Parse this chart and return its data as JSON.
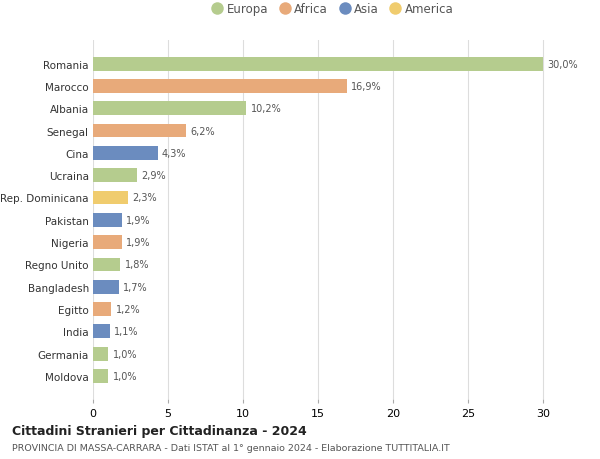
{
  "countries": [
    "Romania",
    "Marocco",
    "Albania",
    "Senegal",
    "Cina",
    "Ucraina",
    "Rep. Dominicana",
    "Pakistan",
    "Nigeria",
    "Regno Unito",
    "Bangladesh",
    "Egitto",
    "India",
    "Germania",
    "Moldova"
  ],
  "values": [
    30.0,
    16.9,
    10.2,
    6.2,
    4.3,
    2.9,
    2.3,
    1.9,
    1.9,
    1.8,
    1.7,
    1.2,
    1.1,
    1.0,
    1.0
  ],
  "labels": [
    "30,0%",
    "16,9%",
    "10,2%",
    "6,2%",
    "4,3%",
    "2,9%",
    "2,3%",
    "1,9%",
    "1,9%",
    "1,8%",
    "1,7%",
    "1,2%",
    "1,1%",
    "1,0%",
    "1,0%"
  ],
  "continents": [
    "Europa",
    "Africa",
    "Europa",
    "Africa",
    "Asia",
    "Europa",
    "America",
    "Asia",
    "Africa",
    "Europa",
    "Asia",
    "Africa",
    "Asia",
    "Europa",
    "Europa"
  ],
  "colors": {
    "Europa": "#b5cc8e",
    "Africa": "#e8aa7a",
    "Asia": "#6b8cbf",
    "America": "#f0cc6e"
  },
  "legend_order": [
    "Europa",
    "Africa",
    "Asia",
    "America"
  ],
  "title": "Cittadini Stranieri per Cittadinanza - 2024",
  "subtitle": "PROVINCIA DI MASSA-CARRARA - Dati ISTAT al 1° gennaio 2024 - Elaborazione TUTTITALIA.IT",
  "xlim": [
    0,
    32
  ],
  "xticks": [
    0,
    5,
    10,
    15,
    20,
    25,
    30
  ],
  "bg_color": "#ffffff",
  "grid_color": "#dddddd",
  "bar_height": 0.62
}
